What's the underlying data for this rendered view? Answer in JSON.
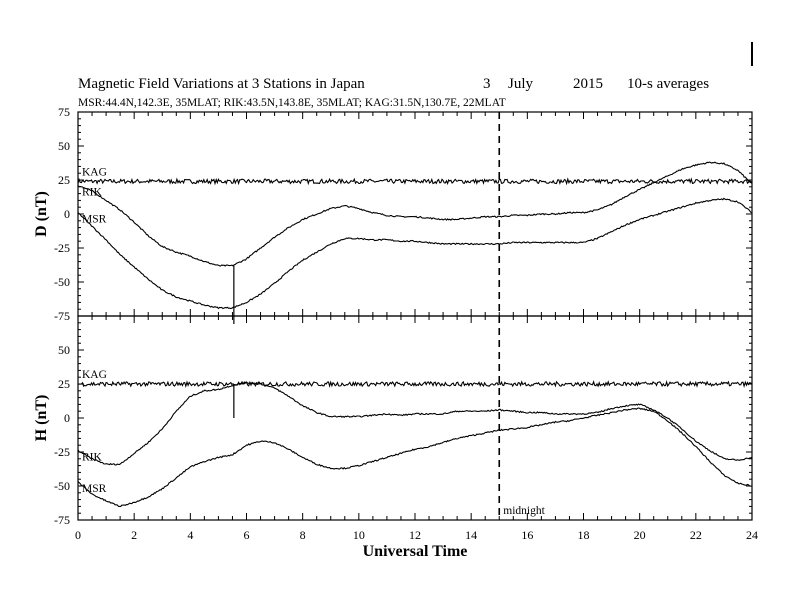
{
  "header": {
    "title": "Magnetic Field Variations at 3 Stations in Japan",
    "day": "3",
    "month": "July",
    "year": "2015",
    "averaging": "10-s averages",
    "stations_line": "MSR:44.4N,142.3E, 35MLAT;  RIK:43.5N,143.8E, 35MLAT;  KAG:31.5N,130.7E, 22MLAT"
  },
  "chart_data": {
    "type": "line",
    "xlabel": "Universal Time",
    "xlim": [
      0,
      24
    ],
    "xticks": [
      "0",
      "2",
      "4",
      "6",
      "8",
      "10",
      "12",
      "14",
      "16",
      "18",
      "20",
      "22",
      "24"
    ],
    "midnight_ut": 15,
    "midnight_label": "midnight",
    "event_marker_ut": 5.55,
    "panels": [
      {
        "ylabel": "D (nT)",
        "ylim": [
          -75,
          75
        ],
        "yticks": [
          "75",
          "50",
          "25",
          "0",
          "-25",
          "-50",
          "-75"
        ],
        "series": [
          {
            "name": "KAG",
            "x": [
              0,
              24
            ],
            "y": [
              24,
              24
            ]
          },
          {
            "name": "RIK",
            "x": [
              0,
              0.5,
              1,
              1.5,
              2,
              2.5,
              3,
              3.5,
              4,
              4.5,
              5,
              5.5,
              6,
              6.5,
              7,
              7.5,
              8,
              8.5,
              9,
              9.5,
              10,
              10.5,
              11,
              11.5,
              12,
              12.5,
              13,
              13.5,
              14,
              14.5,
              15,
              15.5,
              16,
              16.5,
              17,
              17.5,
              18,
              18.5,
              19,
              19.5,
              20,
              20.5,
              21,
              21.5,
              22,
              22.5,
              23,
              23.5,
              24
            ],
            "y": [
              21,
              17,
              10,
              3,
              -6,
              -16,
              -24,
              -28,
              -31,
              -35,
              -38,
              -38,
              -33,
              -25,
              -17,
              -10,
              -4,
              0,
              4,
              6,
              4,
              1,
              -1,
              -2,
              -2,
              -3,
              -4,
              -4,
              -3,
              -2,
              -2,
              -1,
              -1,
              0,
              0,
              1,
              1,
              3,
              7,
              13,
              18,
              23,
              28,
              33,
              36,
              38,
              37,
              32,
              22
            ]
          },
          {
            "name": "MSR",
            "x": [
              0,
              0.5,
              1,
              1.5,
              2,
              2.5,
              3,
              3.5,
              4,
              4.5,
              5,
              5.5,
              6,
              6.5,
              7,
              7.5,
              8,
              8.5,
              9,
              9.5,
              10,
              10.5,
              11,
              11.5,
              12,
              12.5,
              13,
              13.5,
              14,
              14.5,
              15,
              15.5,
              16,
              16.5,
              17,
              17.5,
              18,
              18.5,
              19,
              19.5,
              20,
              20.5,
              21,
              21.5,
              22,
              22.5,
              23,
              23.5,
              24
            ],
            "y": [
              1,
              -9,
              -19,
              -30,
              -39,
              -48,
              -56,
              -61,
              -64,
              -67,
              -69,
              -69,
              -65,
              -59,
              -51,
              -42,
              -34,
              -28,
              -22,
              -18,
              -18,
              -19,
              -19,
              -20,
              -20,
              -21,
              -22,
              -22,
              -22,
              -22,
              -22,
              -21,
              -21,
              -21,
              -21,
              -21,
              -21,
              -18,
              -13,
              -8,
              -4,
              -1,
              2,
              5,
              8,
              10,
              11,
              9,
              1
            ]
          }
        ]
      },
      {
        "ylabel": "H (nT)",
        "ylim": [
          -75,
          75
        ],
        "yticks": [
          "75",
          "50",
          "25",
          "0",
          "-25",
          "-50",
          "-75"
        ],
        "series": [
          {
            "name": "KAG",
            "x": [
              0,
              24
            ],
            "y": [
              25,
              25
            ]
          },
          {
            "name": "RIK",
            "x": [
              0,
              0.5,
              1,
              1.5,
              2,
              2.5,
              3,
              3.5,
              4,
              4.5,
              5,
              5.5,
              6,
              6.5,
              7,
              7.5,
              8,
              8.5,
              9,
              9.5,
              10,
              10.5,
              11,
              11.5,
              12,
              12.5,
              13,
              13.5,
              14,
              14.5,
              15,
              15.5,
              16,
              16.5,
              17,
              17.5,
              18,
              18.5,
              19,
              19.5,
              20,
              20.5,
              21,
              21.5,
              22,
              22.5,
              23,
              23.5,
              24
            ],
            "y": [
              -24,
              -30,
              -34,
              -34,
              -26,
              -18,
              -8,
              5,
              16,
              20,
              21,
              24,
              26,
              25,
              22,
              16,
              9,
              4,
              1,
              1,
              1,
              2,
              3,
              2,
              3,
              3,
              3,
              5,
              5,
              5,
              6,
              5,
              4,
              4,
              3,
              3,
              3,
              4,
              7,
              9,
              10,
              6,
              0,
              -8,
              -17,
              -24,
              -30,
              -31,
              -29
            ]
          },
          {
            "name": "MSR",
            "x": [
              0,
              0.5,
              1,
              1.5,
              2,
              2.5,
              3,
              3.5,
              4,
              4.5,
              5,
              5.5,
              6,
              6.5,
              7,
              7.5,
              8,
              8.5,
              9,
              9.5,
              10,
              10.5,
              11,
              11.5,
              12,
              12.5,
              13,
              13.5,
              14,
              14.5,
              15,
              15.5,
              16,
              16.5,
              17,
              17.5,
              18,
              18.5,
              19,
              19.5,
              20,
              20.5,
              21,
              21.5,
              22,
              22.5,
              23,
              23.5,
              24
            ],
            "y": [
              -47,
              -56,
              -61,
              -65,
              -62,
              -58,
              -52,
              -44,
              -36,
              -32,
              -29,
              -27,
              -20,
              -17,
              -18,
              -23,
              -29,
              -34,
              -37,
              -37,
              -35,
              -32,
              -29,
              -26,
              -23,
              -21,
              -18,
              -15,
              -13,
              -11,
              -9,
              -8,
              -7,
              -5,
              -3,
              -2,
              0,
              2,
              4,
              6,
              7,
              5,
              -2,
              -11,
              -21,
              -32,
              -42,
              -48,
              -50
            ]
          }
        ]
      }
    ]
  }
}
